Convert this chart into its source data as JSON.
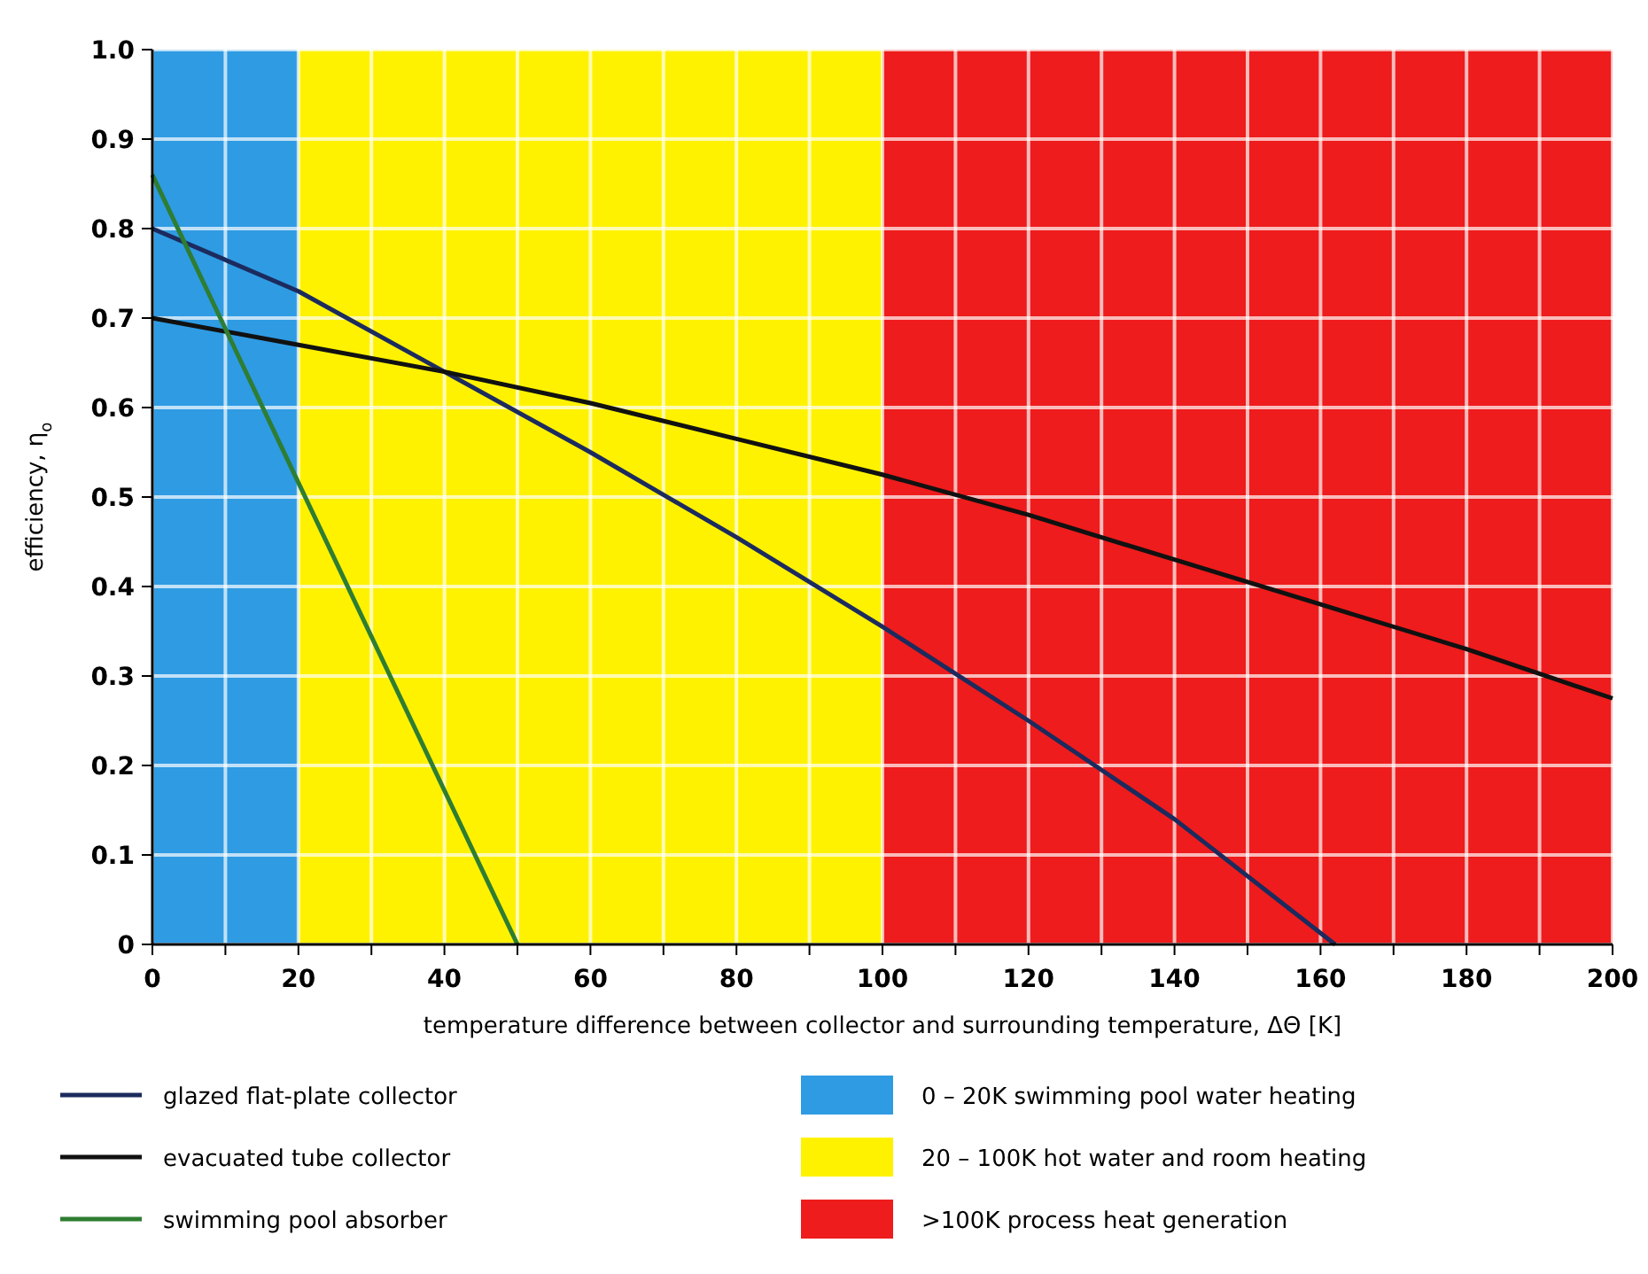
{
  "chart_data": {
    "type": "line",
    "xlabel": "temperature difference between collector and surrounding temperature, ΔΘ [K]",
    "ylabel": "efficiency, η$_{o}$",
    "xlim": [
      0,
      200
    ],
    "ylim": [
      0,
      1
    ],
    "xticks": [
      0,
      {
        "value": 10,
        "label": null
      },
      20,
      {
        "value": 30,
        "label": null
      },
      40,
      {
        "value": 50,
        "label": null
      },
      60,
      {
        "value": 70,
        "label": null
      },
      80,
      {
        "value": 90,
        "label": null
      },
      100,
      {
        "value": 110,
        "label": null
      },
      120,
      {
        "value": 130,
        "label": null
      },
      140,
      {
        "value": 150,
        "label": null
      },
      160,
      {
        "value": 170,
        "label": null
      },
      180,
      {
        "value": 190,
        "label": null
      },
      200
    ],
    "yticks": [
      0,
      0.1,
      0.2,
      0.3,
      0.4,
      0.5,
      0.6,
      0.7,
      0.8,
      0.9,
      {
        "value": 1,
        "label": "1.0"
      }
    ],
    "grid": true,
    "legend": "bottom",
    "line_style": "solid",
    "bands": [
      {
        "axis": "x",
        "from": 0,
        "to": 20,
        "label": "0 – 20K swimming pool water heating",
        "color": "#2f9be3"
      },
      {
        "axis": "x",
        "from": 20,
        "to": 100,
        "label": "20 – 100K hot water and room heating",
        "color": "#fff200"
      },
      {
        "axis": "x",
        "from": 100,
        "to": 200,
        "label": ">100K process heat generation",
        "color": "#ee1c1c"
      }
    ],
    "series": [
      {
        "name": "glazed flat-plate collector",
        "color": "#1c2b5e",
        "x": [
          0,
          20,
          40,
          60,
          80,
          100,
          120,
          140,
          162
        ],
        "values": [
          0.8,
          0.73,
          0.64,
          0.55,
          0.455,
          0.355,
          0.25,
          0.14,
          0
        ]
      },
      {
        "name": "evacuated tube collector",
        "color": "#111111",
        "x": [
          0,
          20,
          40,
          60,
          80,
          100,
          120,
          140,
          160,
          180,
          200
        ],
        "values": [
          0.7,
          0.67,
          0.64,
          0.605,
          0.565,
          0.525,
          0.48,
          0.43,
          0.38,
          0.33,
          0.275
        ]
      },
      {
        "name": "swimming pool absorber",
        "color": "#2e7d32",
        "x": [
          0,
          50
        ],
        "values": [
          0.86,
          0
        ]
      }
    ]
  }
}
